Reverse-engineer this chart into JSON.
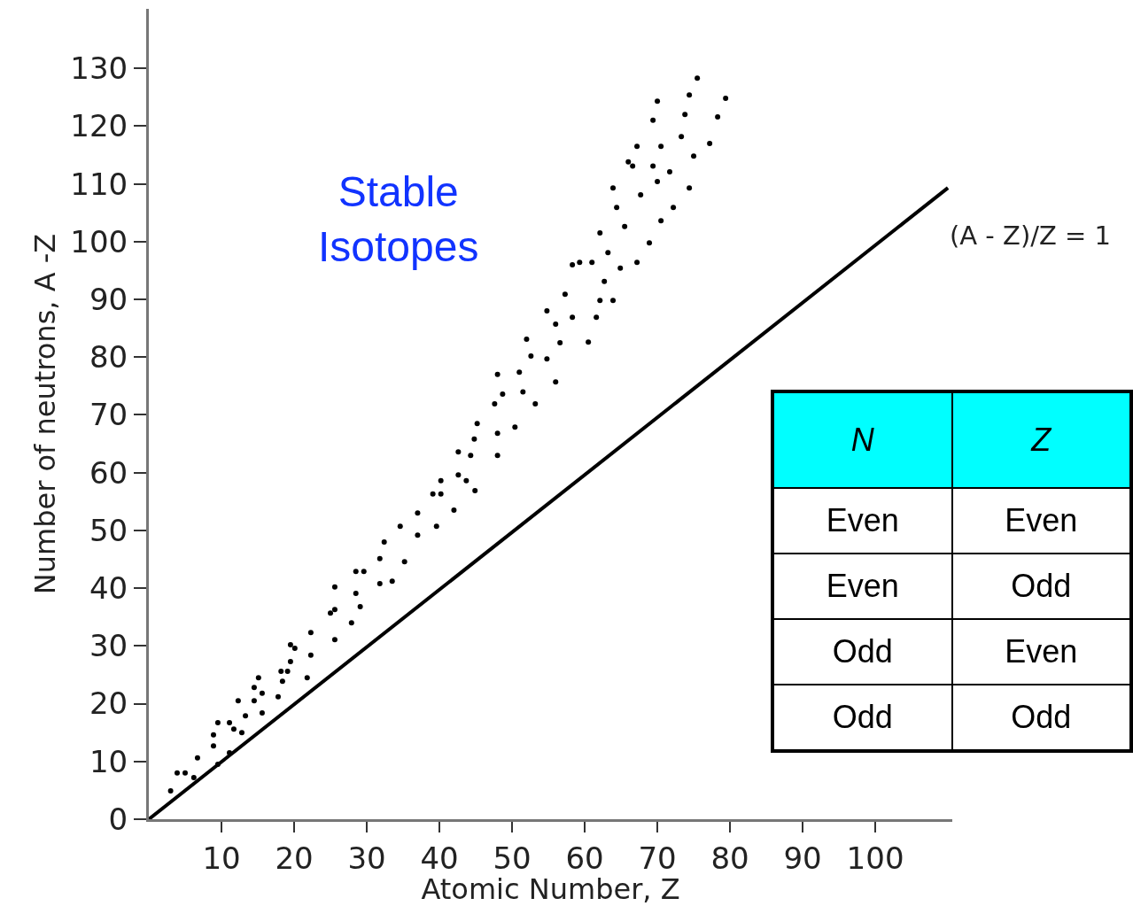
{
  "chart_data": [
    {
      "type": "scatter",
      "xlabel": "Atomic Number, Z",
      "ylabel": "Number of neutrons, A -Z",
      "annotations": [
        "Stable\nIsotopes",
        "(A - Z)/Z = 1"
      ],
      "xlim": [
        0,
        110.6
      ],
      "xticks": [
        10,
        20,
        30,
        40,
        50,
        60,
        70,
        80,
        90,
        100
      ],
      "ylim": [
        0,
        140.3
      ],
      "yticks": [
        0,
        10,
        20,
        30,
        40,
        50,
        60,
        70,
        80,
        90,
        100,
        110,
        120,
        130
      ],
      "grid": false,
      "marker": "circle",
      "line_style": "solid",
      "series": [
        {
          "type": "line",
          "color": "#000000",
          "marker": "none",
          "x": [
            0,
            110
          ],
          "values": [
            0,
            109.3
          ]
        },
        {
          "type": "scatter",
          "color": "#000000",
          "x": [
            3.0,
            3.9,
            5.0,
            6.2,
            6.7,
            9.5,
            8.9,
            8.9,
            9.5,
            11.1,
            11.1,
            11.7,
            12.8,
            12.3,
            13.3,
            14.5,
            14.5,
            15.1,
            15.6,
            15.6,
            17.8,
            18.4,
            18.2,
            19.1,
            19.5,
            19.5,
            20.1,
            21.8,
            22.3,
            22.3,
            25.0,
            25.6,
            25.6,
            25.6,
            27.9,
            28.5,
            29.1,
            28.5,
            29.6,
            31.8,
            31.8,
            32.4,
            33.5,
            34.6,
            35.2,
            37.0,
            39.6,
            37.0,
            42.0,
            39.1,
            40.2,
            44.9,
            40.2,
            43.7,
            42.6,
            42.6,
            44.3,
            48.0,
            44.8,
            48.0,
            45.2,
            50.4,
            47.6,
            53.2,
            48.7,
            51.5,
            48.0,
            51.0,
            52.6,
            54.8,
            52.0,
            56.0,
            56.6,
            60.5,
            54.8,
            56.0,
            57.3,
            58.3,
            61.6,
            62.1,
            63.9,
            62.7,
            64.9,
            58.3,
            59.3,
            61.0,
            67.2,
            63.2,
            68.9,
            62.1,
            65.5,
            70.5,
            64.4,
            72.2,
            67.7,
            63.9,
            74.4,
            70.0,
            71.7,
            66.0,
            66.6,
            69.4,
            75.0,
            67.2,
            70.5,
            77.2,
            73.3,
            69.4,
            78.3,
            73.8,
            70.0,
            79.4,
            74.4,
            75.5
          ],
          "values": [
            4.9,
            8.0,
            8.0,
            7.2,
            10.6,
            9.5,
            12.7,
            14.6,
            16.7,
            16.7,
            11.5,
            15.6,
            15.0,
            20.5,
            17.9,
            20.5,
            22.8,
            24.5,
            21.8,
            18.4,
            21.2,
            23.9,
            25.6,
            25.6,
            27.3,
            30.2,
            29.6,
            24.5,
            28.4,
            32.3,
            35.7,
            36.3,
            40.2,
            31.1,
            34.0,
            39.1,
            36.8,
            42.9,
            42.9,
            45.1,
            40.8,
            48.0,
            41.2,
            50.7,
            44.6,
            53.0,
            50.7,
            49.2,
            53.5,
            56.3,
            56.3,
            56.9,
            58.6,
            58.6,
            59.6,
            63.6,
            63.0,
            63.0,
            65.8,
            66.8,
            68.5,
            67.9,
            71.9,
            71.9,
            73.6,
            74.0,
            77.0,
            77.4,
            80.2,
            79.7,
            83.1,
            75.7,
            82.5,
            82.6,
            88.0,
            85.7,
            90.9,
            86.9,
            86.9,
            89.8,
            89.8,
            93.1,
            95.4,
            96.0,
            96.4,
            96.4,
            96.4,
            98.1,
            99.8,
            101.5,
            102.6,
            103.6,
            105.9,
            105.9,
            108.1,
            109.3,
            109.3,
            110.4,
            112.1,
            113.8,
            113.1,
            113.1,
            114.8,
            116.5,
            116.5,
            117.0,
            118.2,
            121.0,
            121.6,
            122.0,
            124.3,
            124.8,
            125.4,
            128.3
          ]
        }
      ]
    },
    {
      "type": "other",
      "categories": [
        "N",
        "Z"
      ],
      "cell_labels": [
        [
          "Even",
          "Even"
        ],
        [
          "Even",
          "Odd"
        ],
        [
          "Odd",
          "Even"
        ],
        [
          "Odd",
          "Odd"
        ]
      ]
    }
  ]
}
